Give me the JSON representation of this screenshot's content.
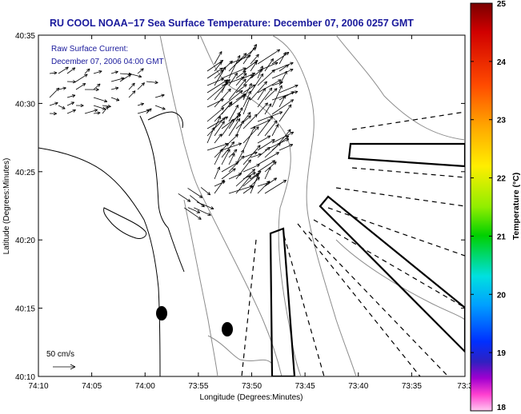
{
  "title": "RU COOL  NOAA−17  Sea Surface Temperature:  December 07, 2006 0257 GMT",
  "current_label_line1": "Raw Surface Current:",
  "current_label_line2": "December 07, 2006 04:00 GMT",
  "scale_label": "50 cm/s",
  "axes": {
    "xlabel": "Longitude (Degrees:Minutes)",
    "ylabel": "Latitude (Degrees:Minutes)",
    "x_ticks": [
      "74:10",
      "74:05",
      "74:00",
      "73:55",
      "73:50",
      "73:45",
      "73:40",
      "73:35",
      "73:3"
    ],
    "y_ticks": [
      "40:35",
      "40:30",
      "40:25",
      "40:20",
      "40:15",
      "40:10"
    ]
  },
  "colorbar": {
    "label": "Temperature (°C)",
    "ticks": [
      "25",
      "24",
      "23",
      "22",
      "21",
      "20",
      "19",
      "18"
    ],
    "min": 18,
    "max": 25
  },
  "colors": {
    "title": "#1a1a9c",
    "land_contour": "#000000",
    "bathymetry": "#8c8c8c"
  }
}
